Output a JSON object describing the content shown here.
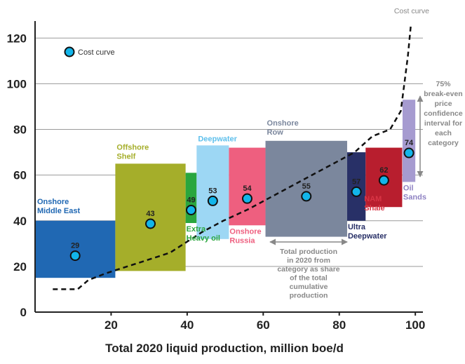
{
  "chart_data": {
    "type": "bar",
    "title": "",
    "xlabel": "Total 2020 liquid production, million boe/d",
    "ylabel": "",
    "xlim": [
      0,
      102
    ],
    "ylim": [
      0,
      125
    ],
    "xticks": [
      20,
      40,
      60,
      80,
      100
    ],
    "yticks": [
      0,
      20,
      40,
      60,
      80,
      100,
      120
    ],
    "grid": "horizontal",
    "categories": [
      {
        "name": "Onshore\nMiddle East",
        "x0": 0,
        "x1": 22.6,
        "low": 15,
        "high": 40,
        "breakeven": 29,
        "color": "#2068b3",
        "label_color": "#2068b3",
        "label_position": "above-left"
      },
      {
        "name": "Offshore\nShelf",
        "x0": 22.6,
        "x1": 42.4,
        "low": 18,
        "high": 65,
        "breakeven": 43,
        "color": "#a5ae2a",
        "label_color": "#a5ae2a",
        "label_position": "above-left"
      },
      {
        "name": "Extra\nHeavy oil",
        "x0": 42.4,
        "x1": 45.5,
        "low": 39,
        "high": 61,
        "breakeven": 49,
        "color": "#2aa63e",
        "label_color": "#2aa63e",
        "label_position": "below-left"
      },
      {
        "name": "Deepwater",
        "x0": 45.5,
        "x1": 54.6,
        "low": 32,
        "high": 73,
        "breakeven": 53,
        "color": "#9dd7f4",
        "label_color": "#5fc0ec",
        "label_position": "above-left"
      },
      {
        "name": "Onshore\nRussia",
        "x0": 54.6,
        "x1": 64.9,
        "low": 38,
        "high": 72,
        "breakeven": 54,
        "color": "#ee5f7f",
        "label_color": "#ee5f7f",
        "label_position": "below-left"
      },
      {
        "name": "Onshore\nRow",
        "x0": 64.9,
        "x1": 87.9,
        "low": 33,
        "high": 75,
        "breakeven": 55,
        "color": "#7b879d",
        "label_color": "#7b879d",
        "label_position": "above-left"
      },
      {
        "name": "Ultra\nDeepwater",
        "x0": 87.9,
        "x1": 93.1,
        "low": 40,
        "high": 70,
        "breakeven": 57,
        "color": "#283067",
        "label_color": "#283067",
        "label_position": "below-left"
      },
      {
        "name": "NAM\nShale",
        "x0": 93.1,
        "x1": 103.4,
        "low": 46,
        "high": 72,
        "breakeven": 62,
        "color": "#b81e2e",
        "label_color": "#d83545",
        "label_position": "below-right"
      },
      {
        "name": "Oil\nSands",
        "x0": 103.5,
        "x1": 107.1,
        "low": 57,
        "high": 93,
        "breakeven": 74,
        "color": "#a69bd0",
        "label_color": "#8f83c3",
        "label_position": "below-left"
      }
    ],
    "cost_curve": {
      "name": "Cost curve",
      "x": [
        5,
        12,
        15,
        20,
        30,
        38,
        42,
        47,
        53,
        60,
        66,
        72,
        78,
        84,
        90,
        95,
        100,
        103,
        104,
        105,
        105.8
      ],
      "y": [
        10,
        10,
        14,
        17,
        22,
        26,
        30,
        35,
        40,
        45,
        50,
        55,
        60,
        65,
        70,
        77,
        80,
        88,
        100,
        112,
        125
      ]
    },
    "annotations": {
      "legend_label": "Cost curve",
      "curve_end_label": "Cost curve",
      "width_note": "Total production\nin 2020 from\ncategory as share\nof the total\ncumulative\nproduction",
      "height_note": "75%\nbreak-even\nprice\nconfidence\ninterval for\neach\ncategory"
    }
  }
}
